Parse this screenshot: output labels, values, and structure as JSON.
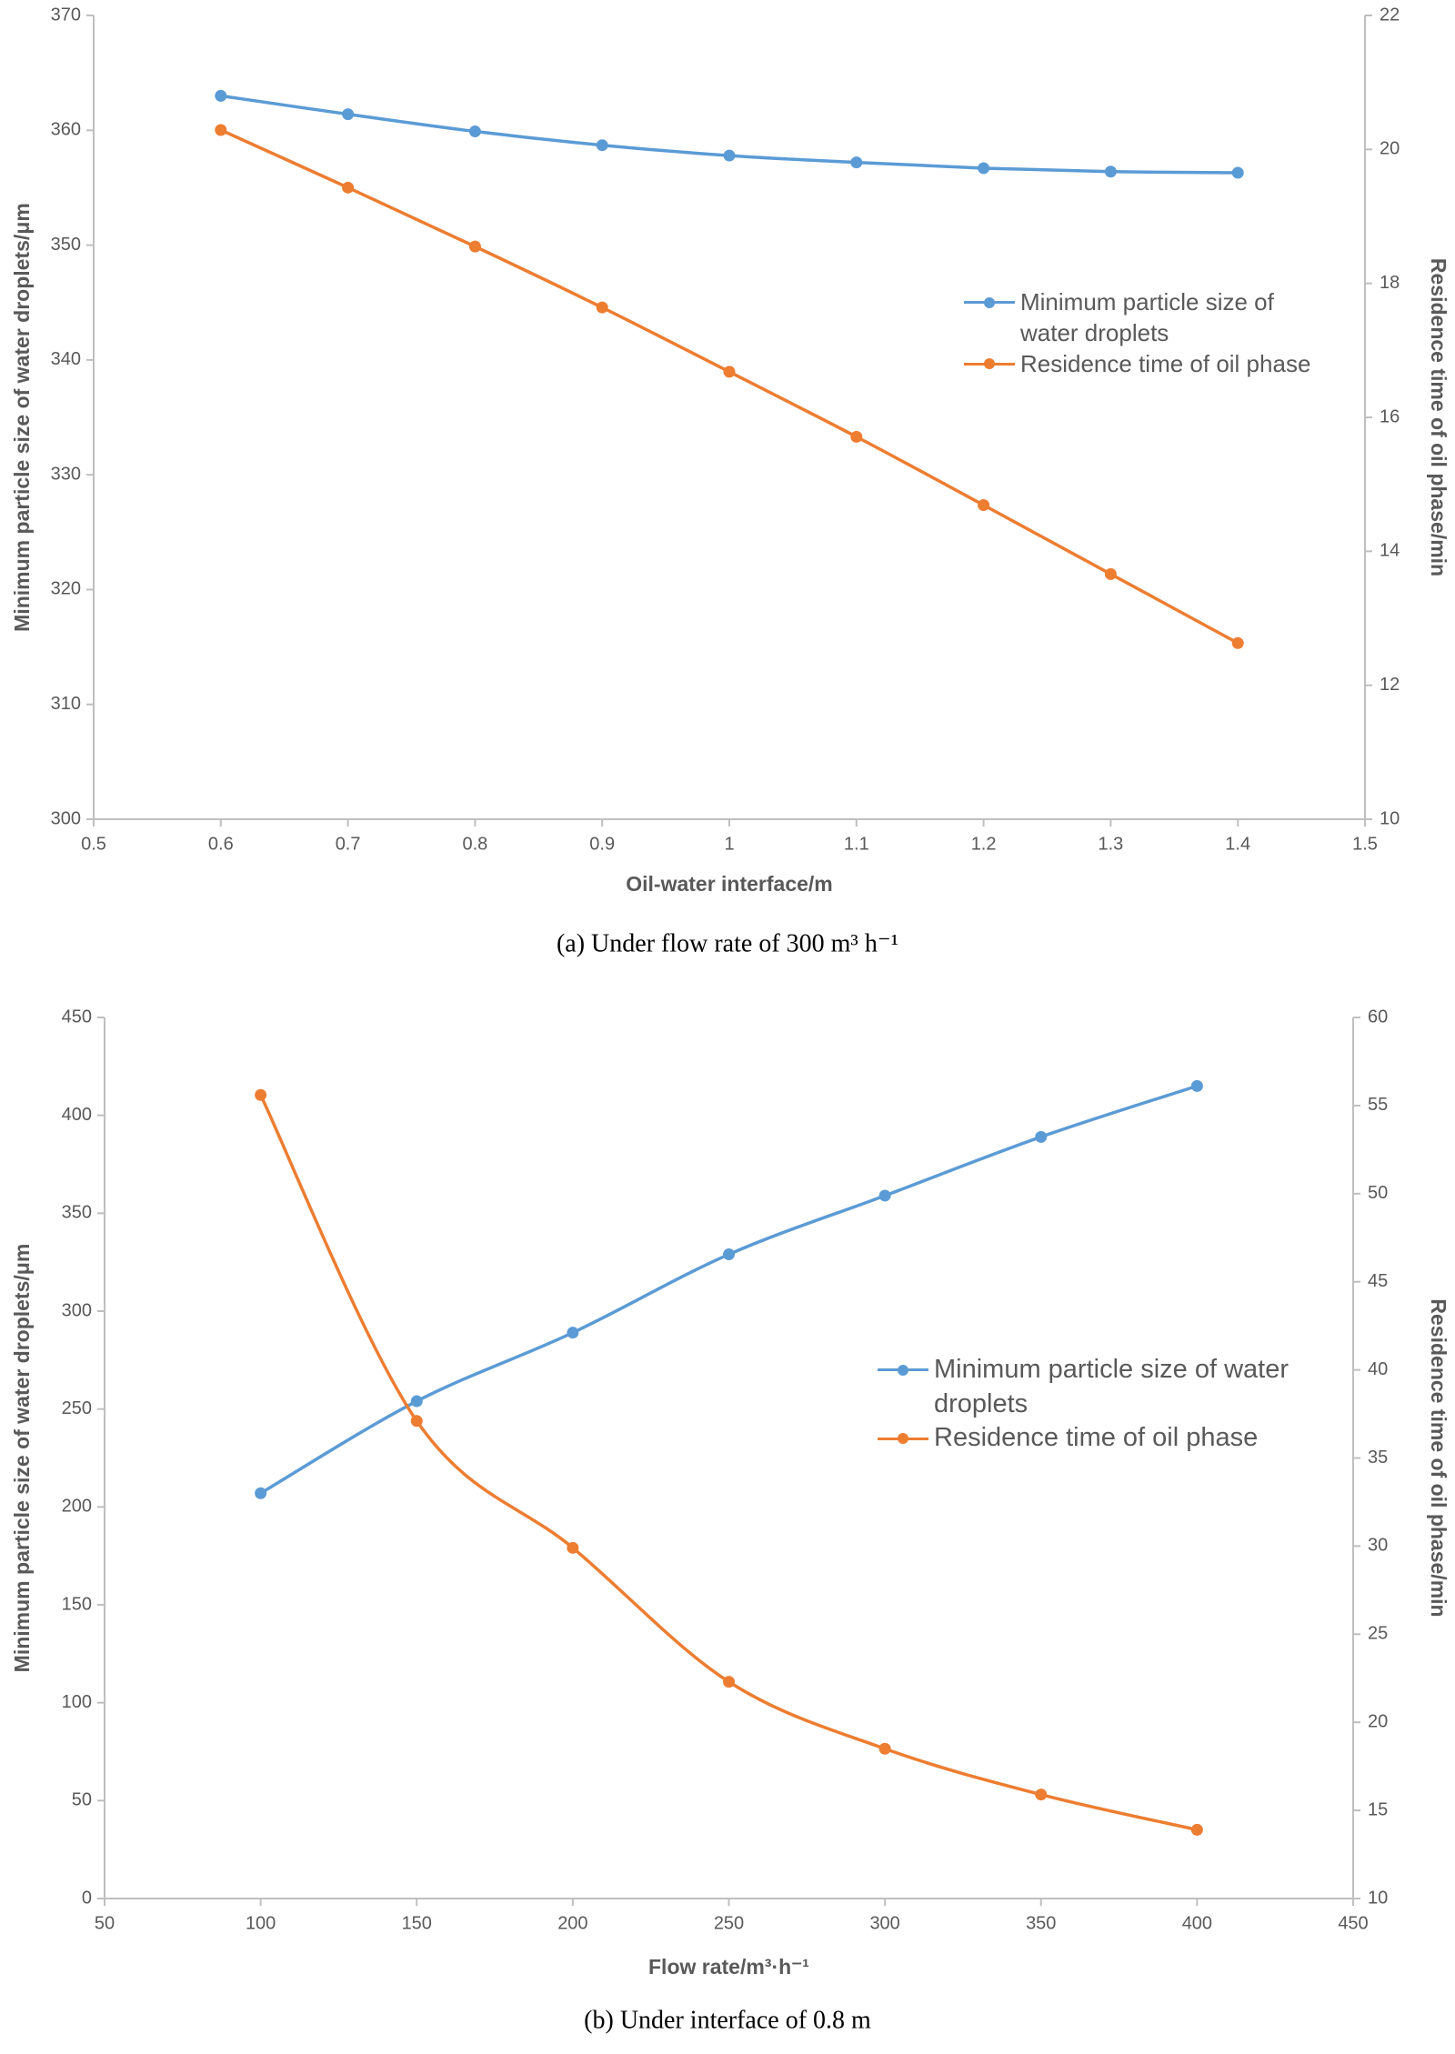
{
  "chart_data": [
    {
      "type": "line",
      "caption": "(a) Under flow rate of 300 m³ h⁻¹",
      "xlabel": "Oil-water interface/m",
      "ylabel": "Minimum particle size of water droplets/μm",
      "y2label": "Residence time of oil phase/min",
      "x": [
        0.6,
        0.7,
        0.8,
        0.9,
        1,
        1.1,
        1.2,
        1.3,
        1.4
      ],
      "xlim": [
        0.5,
        1.5
      ],
      "xticks": [
        0.5,
        0.6,
        0.7,
        0.8,
        0.9,
        1,
        1.1,
        1.2,
        1.3,
        1.4,
        1.5
      ],
      "ylim": [
        300,
        370
      ],
      "yticks": [
        300,
        310,
        320,
        330,
        340,
        350,
        360,
        370
      ],
      "y2lim": [
        10,
        22
      ],
      "y2ticks": [
        10,
        12,
        14,
        16,
        18,
        20,
        22
      ],
      "smooth": true,
      "grid": false,
      "series": [
        {
          "name": "Minimum particle size of water droplets",
          "color": "#5b9bd5",
          "values": [
            363,
            361.4,
            359.9,
            358.7,
            357.8,
            357.2,
            356.7,
            356.4,
            356.3
          ]
        },
        {
          "name": "Residence time of oil phase",
          "color": "#ed7d31",
          "axis": "y2",
          "values": [
            20.29,
            19.43,
            18.55,
            17.64,
            16.68,
            15.71,
            14.69,
            13.66,
            12.63
          ]
        }
      ]
    },
    {
      "type": "line",
      "caption": "(b) Under interface of 0.8 m",
      "xlabel": "Flow rate/m³·h⁻¹",
      "ylabel": "Minimum particle size of water droplets/μm",
      "y2label": "Residence time of oil phase/min",
      "x": [
        100,
        150,
        200,
        250,
        300,
        350,
        400
      ],
      "xlim": [
        50,
        450
      ],
      "xticks": [
        50,
        100,
        150,
        200,
        250,
        300,
        350,
        400,
        450
      ],
      "ylim": [
        0,
        450
      ],
      "yticks": [
        0,
        50,
        100,
        150,
        200,
        250,
        300,
        350,
        400,
        450
      ],
      "y2lim": [
        10,
        60
      ],
      "y2ticks": [
        10,
        15,
        20,
        25,
        30,
        35,
        40,
        45,
        50,
        55,
        60
      ],
      "smooth": true,
      "grid": false,
      "series": [
        {
          "name": "Minimum particle size of water droplets",
          "color": "#5b9bd5",
          "values": [
            207,
            254,
            289,
            329,
            359,
            389,
            415
          ]
        },
        {
          "name": "Residence time of oil phase",
          "color": "#ed7d31",
          "axis": "y2",
          "values": [
            55.6,
            37.1,
            29.9,
            22.3,
            18.5,
            15.9,
            13.9
          ]
        }
      ]
    }
  ]
}
